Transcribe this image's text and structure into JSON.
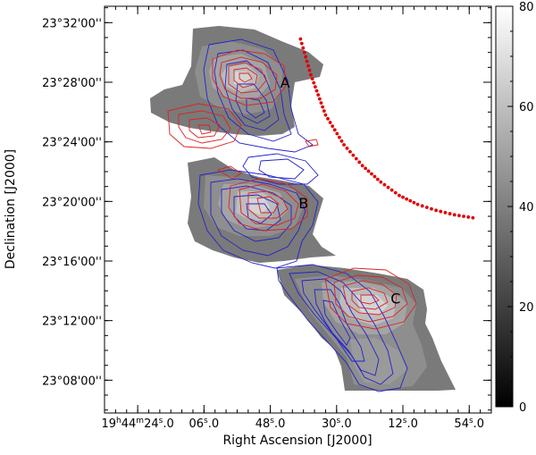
{
  "chart_data": {
    "type": "heatmap",
    "title": "",
    "xlabel": "Right Ascension [J2000]",
    "ylabel": "Declination [J2000]",
    "x_ticks": [
      {
        "ra_sec": 84,
        "label": "19h44m24.0s",
        "h": "19",
        "m": "44",
        "s": "24.0"
      },
      {
        "ra_sec": 66,
        "label": "06.0",
        "s": "06",
        "frac": ".0"
      },
      {
        "ra_sec": 48,
        "label": "48.0",
        "s": "48",
        "frac": ".0"
      },
      {
        "ra_sec": 30,
        "label": "30.0",
        "s": "30",
        "frac": ".0"
      },
      {
        "ra_sec": 12,
        "label": "12.0",
        "s": "12",
        "frac": ".0"
      },
      {
        "ra_sec": -6,
        "label": "54.0",
        "s": "54",
        "frac": ".0"
      }
    ],
    "y_ticks": [
      {
        "dec_min": 32,
        "label": "23°32'00''"
      },
      {
        "dec_min": 28,
        "label": "23°28'00''"
      },
      {
        "dec_min": 24,
        "label": "23°24'00''"
      },
      {
        "dec_min": 20,
        "label": "23°20'00''"
      },
      {
        "dec_min": 16,
        "label": "23°16'00''"
      },
      {
        "dec_min": 12,
        "label": "23°12'00''"
      },
      {
        "dec_min": 8,
        "label": "23°08'00''"
      }
    ],
    "xlim": [
      93,
      -12
    ],
    "ylim": [
      5.8,
      33.1
    ],
    "colorbar": {
      "range": [
        0,
        80
      ],
      "ticks": [
        0,
        20,
        40,
        60,
        80
      ],
      "colormap": "grayscale (black at 0, white at 80)"
    },
    "regions": [
      {
        "label": "A",
        "ra_sec": 44,
        "dec_min": 28.0
      },
      {
        "label": "B",
        "ra_sec": 39,
        "dec_min": 19.9
      },
      {
        "label": "C",
        "ra_sec": 14,
        "dec_min": 13.5
      }
    ],
    "contour_series": [
      {
        "color": "#2222cc",
        "style": "solid"
      },
      {
        "color": "#dd2222",
        "style": "solid"
      }
    ],
    "arc_track": {
      "color": "#e00000",
      "style": "dotted",
      "ra_sec": [
        39.8,
        37,
        33,
        28,
        23,
        18,
        13,
        8,
        3,
        -2,
        -7
      ],
      "dec_min": [
        30.9,
        28.5,
        25.8,
        23.8,
        22.4,
        21.3,
        20.4,
        19.8,
        19.4,
        19.1,
        18.9
      ]
    },
    "grid": false
  }
}
